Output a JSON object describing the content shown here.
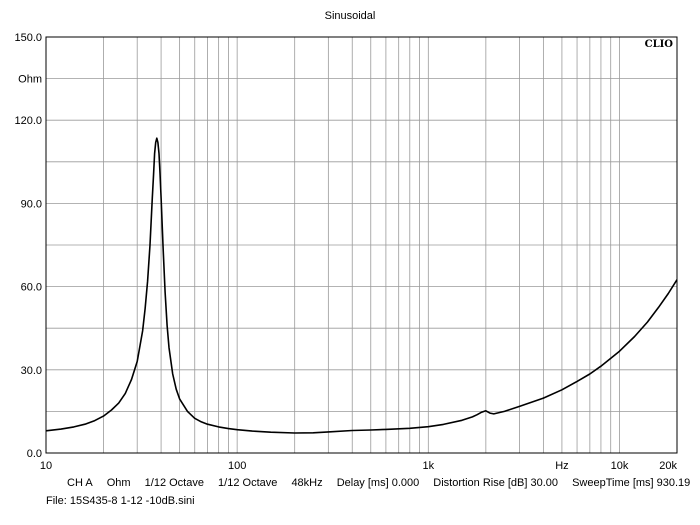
{
  "chart_data": {
    "type": "line",
    "title": "Sinusoidal",
    "brand": "CLIO",
    "x_scale": "log",
    "xlim": [
      10,
      20000
    ],
    "ylim": [
      0,
      150
    ],
    "y_unit": "Ohm",
    "x_unit": "Hz",
    "grid": true,
    "x_tick_labels": [
      {
        "value": 10,
        "label": "10"
      },
      {
        "value": 100,
        "label": "100"
      },
      {
        "value": 1000,
        "label": "1k"
      },
      {
        "value": 10000,
        "label": "10k"
      },
      {
        "value": 20000,
        "label": "20k"
      }
    ],
    "y_tick_labels": [
      {
        "value": 150,
        "label": "150.0"
      },
      {
        "value": 120,
        "label": "120.0"
      },
      {
        "value": 90,
        "label": "90.0"
      },
      {
        "value": 60,
        "label": "60.0"
      },
      {
        "value": 30,
        "label": "30.0"
      },
      {
        "value": 0,
        "label": "0.0"
      }
    ],
    "series": [
      {
        "color": "#000000",
        "x": [
          10,
          12,
          14,
          16,
          18,
          20,
          22,
          24,
          26,
          28,
          30,
          32,
          33,
          34,
          35,
          36,
          36.5,
          37,
          37.5,
          38,
          38.5,
          39,
          39.5,
          40,
          41,
          42,
          43,
          44,
          46,
          48,
          50,
          55,
          60,
          65,
          70,
          80,
          90,
          100,
          120,
          150,
          200,
          250,
          300,
          400,
          500,
          600,
          800,
          1000,
          1200,
          1500,
          1700,
          1800,
          1900,
          2000,
          2100,
          2200,
          2500,
          3000,
          4000,
          5000,
          6000,
          7000,
          8000,
          10000,
          12000,
          14000,
          16000,
          18000,
          20000
        ],
        "y": [
          8,
          8.6,
          9.4,
          10.4,
          11.7,
          13.3,
          15.5,
          18,
          21.5,
          26.5,
          33,
          44,
          52,
          62,
          75,
          92,
          100,
          108,
          112,
          113.5,
          112,
          108,
          101,
          92,
          74,
          58,
          46,
          38,
          28.5,
          23,
          19.5,
          15,
          12.5,
          11.2,
          10.4,
          9.4,
          8.8,
          8.4,
          7.9,
          7.5,
          7.2,
          7.3,
          7.6,
          8.1,
          8.3,
          8.5,
          8.9,
          9.5,
          10.3,
          11.8,
          13,
          13.8,
          14.7,
          15.2,
          14.4,
          14.1,
          15,
          16.8,
          19.8,
          22.8,
          25.8,
          28.5,
          31.3,
          36.7,
          42,
          47.2,
          52.5,
          57.5,
          62.5
        ]
      }
    ]
  },
  "footer": {
    "channel": "CH A",
    "unit": "Ohm",
    "smoothing": "1/12 Octave",
    "resolution": "1/12 Octave",
    "sample_rate": "48kHz",
    "delay": "Delay [ms] 0.000",
    "distortion_rise": "Distortion Rise [dB] 30.00",
    "sweep_time": "SweepTime [ms] 930.19",
    "file": "File: 15S435-8 1-12 -10dB.sini"
  }
}
